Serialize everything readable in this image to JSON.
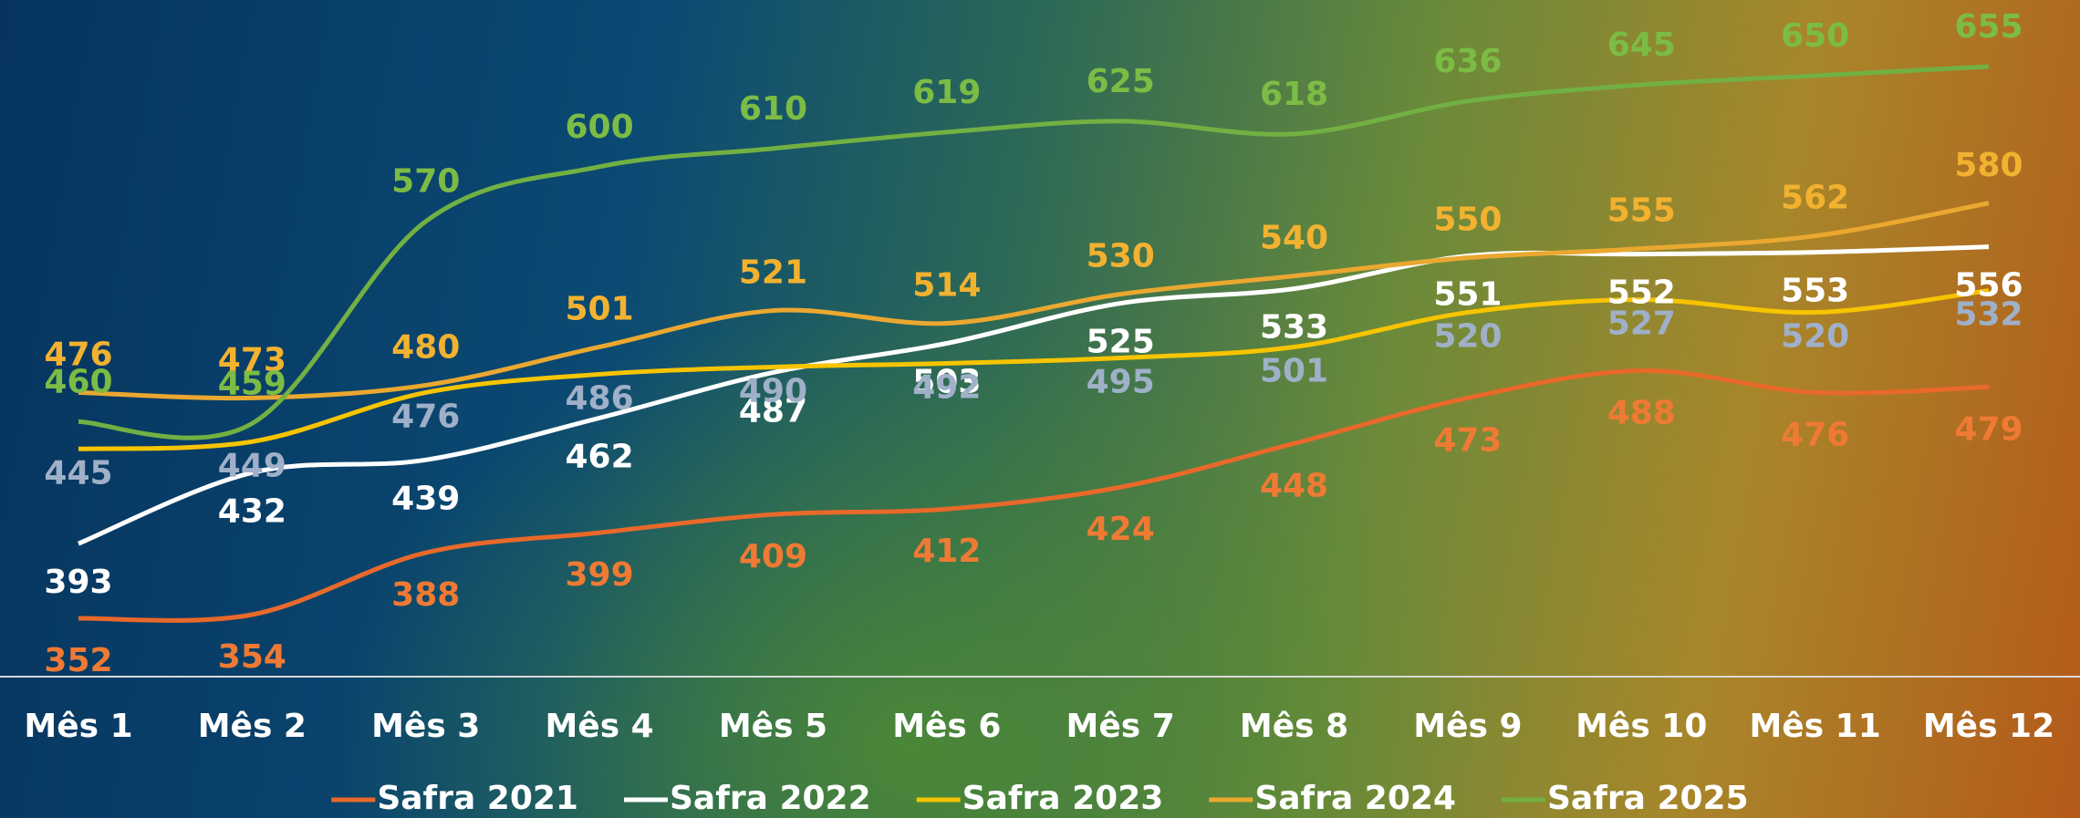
{
  "chart_data": {
    "type": "line",
    "categories": [
      "Mês 1",
      "Mês 2",
      "Mês 3",
      "Mês 4",
      "Mês 5",
      "Mês 6",
      "Mês 7",
      "Mês 8",
      "Mês 9",
      "Mês 10",
      "Mês 11",
      "Mês 12"
    ],
    "series": [
      {
        "name": "Safra 2021",
        "color": "#e8692a",
        "label_color": "#ef7a34",
        "values": [
          352,
          354,
          388,
          399,
          409,
          412,
          424,
          448,
          473,
          488,
          476,
          479
        ]
      },
      {
        "name": "Safra 2022",
        "color": "#ffffff",
        "label_color": "#ffffff",
        "values": [
          393,
          432,
          439,
          462,
          487,
          503,
          525,
          533,
          551,
          552,
          553,
          556
        ]
      },
      {
        "name": "Safra 2023",
        "color": "#f7c400",
        "label_color": "#9fb0c8",
        "values": [
          445,
          449,
          476,
          486,
          490,
          492,
          495,
          501,
          520,
          527,
          520,
          532
        ]
      },
      {
        "name": "Safra 2024",
        "color": "#eaa830",
        "label_color": "#f2b230",
        "values": [
          476,
          473,
          480,
          501,
          521,
          514,
          530,
          540,
          550,
          555,
          562,
          580
        ]
      },
      {
        "name": "Safra 2025",
        "color": "#72b043",
        "label_color": "#7cbc45",
        "values": [
          460,
          459,
          570,
          600,
          610,
          619,
          625,
          618,
          636,
          645,
          650,
          655
        ]
      }
    ],
    "legend": "bottom"
  }
}
